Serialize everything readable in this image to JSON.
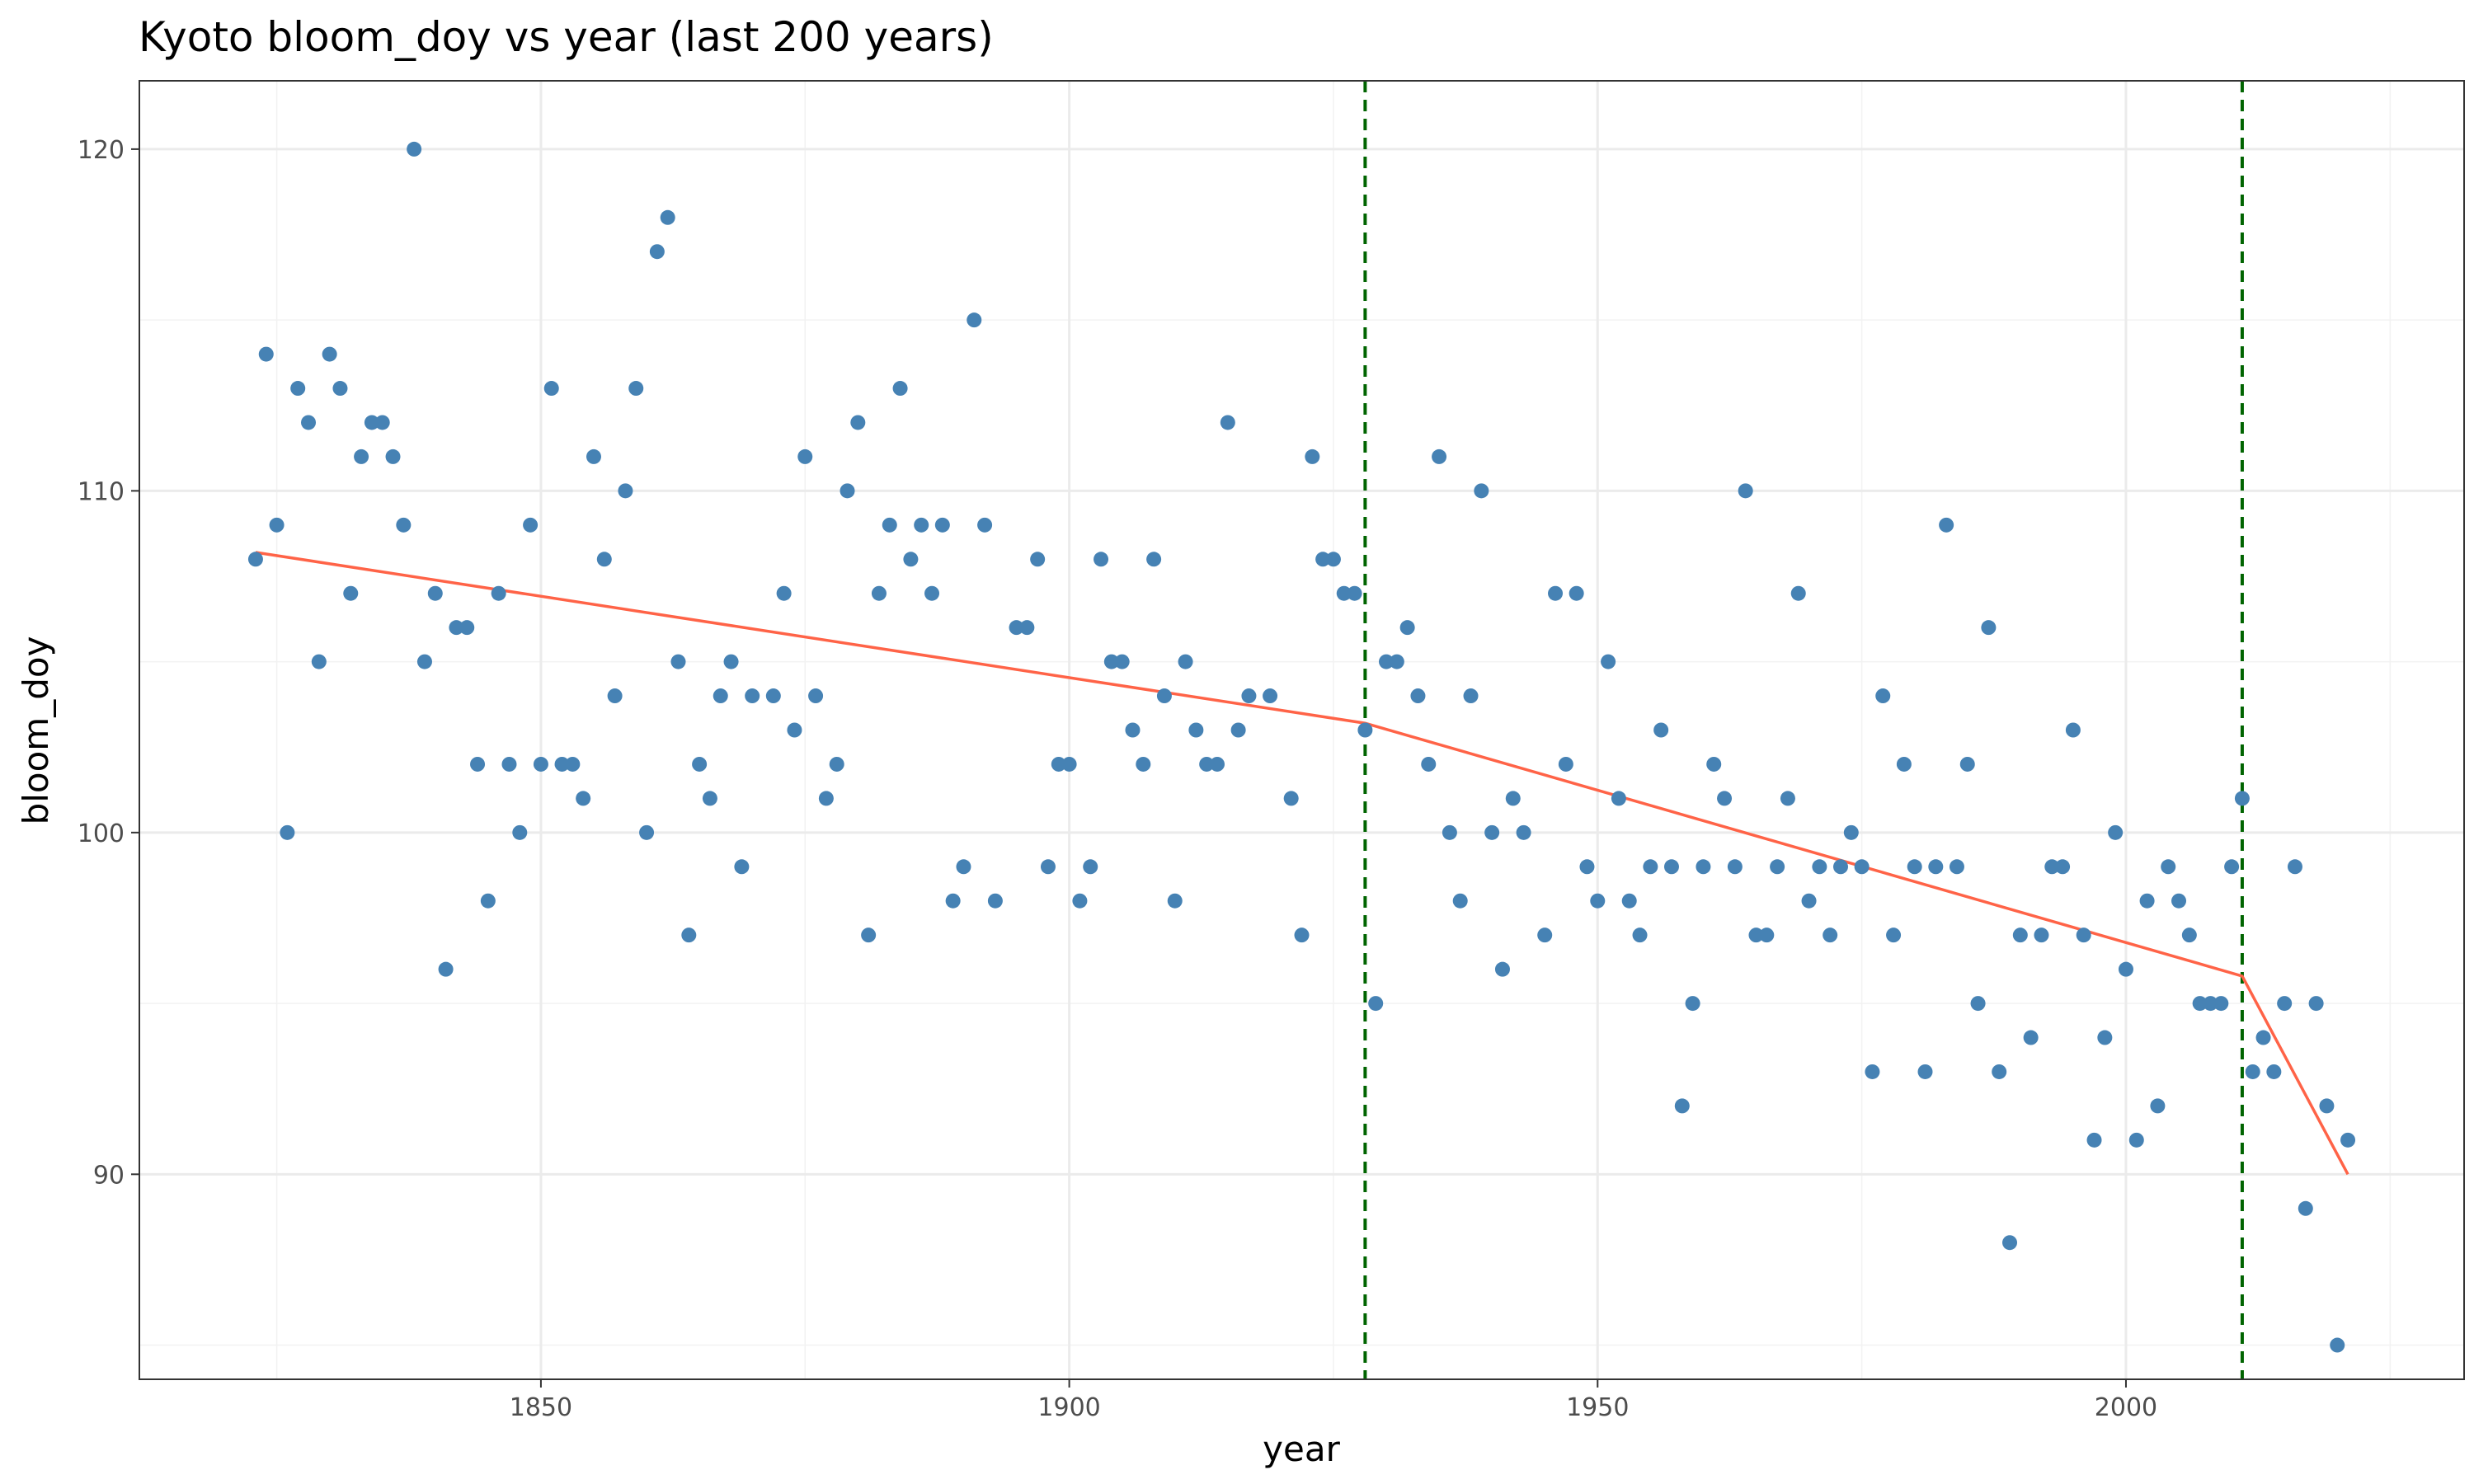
{
  "chart_data": {
    "type": "scatter",
    "title": "Kyoto bloom_doy vs year (last 200 years)",
    "xlabel": "year",
    "ylabel": "bloom_doy",
    "xlim": [
      1812,
      2032
    ],
    "ylim": [
      84,
      122
    ],
    "x_ticks": [
      1850,
      1900,
      1950,
      2000
    ],
    "y_ticks": [
      90,
      100,
      110,
      120
    ],
    "grid": true,
    "colors": {
      "points": "#4682B4",
      "trend": "#FF6347",
      "breakpoints": "#006400"
    },
    "points": [
      [
        1823,
        108
      ],
      [
        1824,
        114
      ],
      [
        1825,
        109
      ],
      [
        1826,
        100
      ],
      [
        1827,
        113
      ],
      [
        1828,
        112
      ],
      [
        1829,
        105
      ],
      [
        1830,
        114
      ],
      [
        1831,
        113
      ],
      [
        1832,
        107
      ],
      [
        1833,
        111
      ],
      [
        1834,
        112
      ],
      [
        1835,
        112
      ],
      [
        1836,
        111
      ],
      [
        1837,
        109
      ],
      [
        1838,
        120
      ],
      [
        1839,
        105
      ],
      [
        1840,
        107
      ],
      [
        1841,
        96
      ],
      [
        1842,
        106
      ],
      [
        1843,
        106
      ],
      [
        1844,
        102
      ],
      [
        1845,
        98
      ],
      [
        1846,
        107
      ],
      [
        1847,
        102
      ],
      [
        1848,
        100
      ],
      [
        1849,
        109
      ],
      [
        1850,
        102
      ],
      [
        1851,
        113
      ],
      [
        1852,
        102
      ],
      [
        1853,
        102
      ],
      [
        1854,
        101
      ],
      [
        1855,
        111
      ],
      [
        1856,
        108
      ],
      [
        1857,
        104
      ],
      [
        1858,
        110
      ],
      [
        1859,
        113
      ],
      [
        1860,
        100
      ],
      [
        1861,
        117
      ],
      [
        1862,
        118
      ],
      [
        1863,
        105
      ],
      [
        1864,
        97
      ],
      [
        1865,
        102
      ],
      [
        1866,
        101
      ],
      [
        1867,
        104
      ],
      [
        1868,
        105
      ],
      [
        1869,
        99
      ],
      [
        1870,
        104
      ],
      [
        1872,
        104
      ],
      [
        1873,
        107
      ],
      [
        1874,
        103
      ],
      [
        1875,
        111
      ],
      [
        1876,
        104
      ],
      [
        1877,
        101
      ],
      [
        1878,
        102
      ],
      [
        1879,
        110
      ],
      [
        1880,
        112
      ],
      [
        1881,
        97
      ],
      [
        1882,
        107
      ],
      [
        1883,
        109
      ],
      [
        1884,
        113
      ],
      [
        1885,
        108
      ],
      [
        1886,
        109
      ],
      [
        1887,
        107
      ],
      [
        1888,
        109
      ],
      [
        1889,
        98
      ],
      [
        1890,
        99
      ],
      [
        1891,
        115
      ],
      [
        1892,
        109
      ],
      [
        1893,
        98
      ],
      [
        1895,
        106
      ],
      [
        1896,
        106
      ],
      [
        1897,
        108
      ],
      [
        1898,
        99
      ],
      [
        1899,
        102
      ],
      [
        1900,
        102
      ],
      [
        1901,
        98
      ],
      [
        1902,
        99
      ],
      [
        1903,
        108
      ],
      [
        1904,
        105
      ],
      [
        1905,
        105
      ],
      [
        1906,
        103
      ],
      [
        1907,
        102
      ],
      [
        1908,
        108
      ],
      [
        1909,
        104
      ],
      [
        1910,
        98
      ],
      [
        1911,
        105
      ],
      [
        1912,
        103
      ],
      [
        1913,
        102
      ],
      [
        1914,
        102
      ],
      [
        1915,
        112
      ],
      [
        1916,
        103
      ],
      [
        1917,
        104
      ],
      [
        1919,
        104
      ],
      [
        1921,
        101
      ],
      [
        1922,
        97
      ],
      [
        1923,
        111
      ],
      [
        1924,
        108
      ],
      [
        1925,
        108
      ],
      [
        1926,
        107
      ],
      [
        1927,
        107
      ],
      [
        1928,
        103
      ],
      [
        1929,
        95
      ],
      [
        1930,
        105
      ],
      [
        1931,
        105
      ],
      [
        1932,
        106
      ],
      [
        1933,
        104
      ],
      [
        1934,
        102
      ],
      [
        1935,
        111
      ],
      [
        1936,
        100
      ],
      [
        1937,
        98
      ],
      [
        1938,
        104
      ],
      [
        1939,
        110
      ],
      [
        1940,
        100
      ],
      [
        1941,
        96
      ],
      [
        1942,
        101
      ],
      [
        1943,
        100
      ],
      [
        1945,
        97
      ],
      [
        1946,
        107
      ],
      [
        1947,
        102
      ],
      [
        1948,
        107
      ],
      [
        1949,
        99
      ],
      [
        1950,
        98
      ],
      [
        1951,
        105
      ],
      [
        1952,
        101
      ],
      [
        1953,
        98
      ],
      [
        1954,
        97
      ],
      [
        1955,
        99
      ],
      [
        1956,
        103
      ],
      [
        1957,
        99
      ],
      [
        1958,
        92
      ],
      [
        1959,
        95
      ],
      [
        1960,
        99
      ],
      [
        1961,
        102
      ],
      [
        1962,
        101
      ],
      [
        1963,
        99
      ],
      [
        1964,
        110
      ],
      [
        1965,
        97
      ],
      [
        1966,
        97
      ],
      [
        1967,
        99
      ],
      [
        1968,
        101
      ],
      [
        1969,
        107
      ],
      [
        1970,
        98
      ],
      [
        1971,
        99
      ],
      [
        1972,
        97
      ],
      [
        1973,
        99
      ],
      [
        1974,
        100
      ],
      [
        1975,
        99
      ],
      [
        1976,
        93
      ],
      [
        1977,
        104
      ],
      [
        1978,
        97
      ],
      [
        1979,
        102
      ],
      [
        1980,
        99
      ],
      [
        1981,
        93
      ],
      [
        1982,
        99
      ],
      [
        1983,
        109
      ],
      [
        1984,
        99
      ],
      [
        1985,
        102
      ],
      [
        1986,
        95
      ],
      [
        1987,
        106
      ],
      [
        1988,
        93
      ],
      [
        1989,
        88
      ],
      [
        1990,
        97
      ],
      [
        1991,
        94
      ],
      [
        1992,
        97
      ],
      [
        1993,
        99
      ],
      [
        1994,
        99
      ],
      [
        1995,
        103
      ],
      [
        1996,
        97
      ],
      [
        1997,
        91
      ],
      [
        1998,
        94
      ],
      [
        1999,
        100
      ],
      [
        2000,
        96
      ],
      [
        2001,
        91
      ],
      [
        2002,
        98
      ],
      [
        2003,
        92
      ],
      [
        2004,
        99
      ],
      [
        2005,
        98
      ],
      [
        2006,
        97
      ],
      [
        2007,
        95
      ],
      [
        2008,
        95
      ],
      [
        2009,
        95
      ],
      [
        2010,
        99
      ],
      [
        2011,
        101
      ],
      [
        2012,
        93
      ],
      [
        2013,
        94
      ],
      [
        2014,
        93
      ],
      [
        2015,
        95
      ],
      [
        2016,
        99
      ],
      [
        2017,
        89
      ],
      [
        2018,
        95
      ],
      [
        2019,
        92
      ],
      [
        2020,
        85
      ],
      [
        2021,
        91
      ]
    ],
    "trend_line": [
      [
        1823,
        108.2
      ],
      [
        1928,
        103.2
      ],
      [
        2011,
        95.8
      ],
      [
        2021,
        90.0
      ]
    ],
    "breakpoints": [
      1928,
      2011
    ]
  }
}
